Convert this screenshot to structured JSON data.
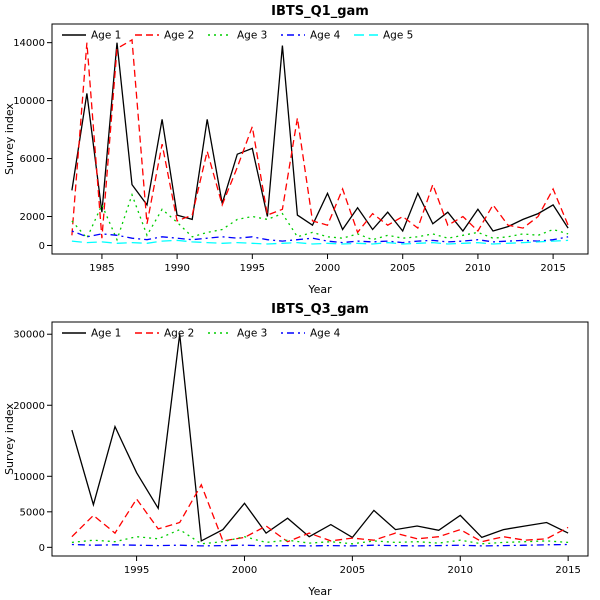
{
  "page": {
    "background": "#ffffff"
  },
  "chart_data": [
    {
      "type": "line",
      "title": "IBTS_Q1_gam",
      "xlabel": "Year",
      "ylabel": "Survey index",
      "grid": false,
      "legend_position": "top-left-horizontal",
      "x": [
        1983,
        1984,
        1985,
        1986,
        1987,
        1988,
        1989,
        1990,
        1991,
        1992,
        1993,
        1994,
        1995,
        1996,
        1997,
        1998,
        1999,
        2000,
        2001,
        2002,
        2003,
        2004,
        2005,
        2006,
        2007,
        2008,
        2009,
        2010,
        2011,
        2012,
        2013,
        2014,
        2015,
        2016
      ],
      "xticks": [
        1985,
        1990,
        1995,
        2000,
        2005,
        2010,
        2015
      ],
      "yticks": [
        0,
        2000,
        6000,
        10000,
        14000
      ],
      "ylim": [
        0,
        14700
      ],
      "series": [
        {
          "name": "Age 1",
          "color": "#000000",
          "dash": "",
          "values": [
            3800,
            10500,
            2300,
            14000,
            4200,
            2800,
            8700,
            2100,
            1800,
            8700,
            2900,
            6300,
            6700,
            2000,
            13800,
            2100,
            1400,
            3600,
            1100,
            2600,
            1100,
            2300,
            1000,
            3600,
            1500,
            2300,
            1000,
            2500,
            1000,
            1300,
            1800,
            2200,
            2800,
            1200
          ]
        },
        {
          "name": "Age 2",
          "color": "#FF0000",
          "dash": "7,4",
          "values": [
            700,
            14000,
            500,
            13600,
            14200,
            1500,
            7000,
            1700,
            2100,
            6500,
            2800,
            5400,
            8200,
            2100,
            2500,
            8800,
            1700,
            1400,
            3900,
            900,
            2200,
            1400,
            2000,
            1200,
            4200,
            1400,
            2000,
            1000,
            2800,
            1400,
            1200,
            2000,
            3900,
            1400
          ]
        },
        {
          "name": "Age 3",
          "color": "#00CD00",
          "dash": "2,4",
          "values": [
            1700,
            500,
            2800,
            400,
            3500,
            700,
            2500,
            1600,
            600,
            900,
            1100,
            1800,
            2000,
            1800,
            2200,
            600,
            900,
            600,
            500,
            800,
            400,
            700,
            500,
            600,
            800,
            500,
            700,
            900,
            500,
            600,
            800,
            700,
            1100,
            800
          ]
        },
        {
          "name": "Age 4",
          "color": "#0000FF",
          "dash": "2,4,7,4",
          "values": [
            1000,
            600,
            800,
            700,
            500,
            400,
            600,
            500,
            400,
            500,
            600,
            500,
            600,
            400,
            300,
            400,
            500,
            300,
            200,
            300,
            250,
            300,
            200,
            300,
            350,
            250,
            300,
            400,
            250,
            300,
            350,
            300,
            400,
            600
          ]
        },
        {
          "name": "Age 5",
          "color": "#00FFFF",
          "dash": "10,5",
          "values": [
            300,
            200,
            250,
            150,
            200,
            150,
            300,
            350,
            250,
            200,
            150,
            200,
            150,
            100,
            150,
            200,
            100,
            150,
            100,
            150,
            100,
            200,
            100,
            150,
            200,
            100,
            150,
            200,
            100,
            150,
            200,
            250,
            300,
            350
          ]
        }
      ]
    },
    {
      "type": "line",
      "title": "IBTS_Q3_gam",
      "xlabel": "Year",
      "ylabel": "Survey index",
      "grid": false,
      "legend_position": "top-left-horizontal",
      "x": [
        1992,
        1993,
        1994,
        1995,
        1996,
        1997,
        1998,
        1999,
        2000,
        2001,
        2002,
        2003,
        2004,
        2005,
        2006,
        2007,
        2008,
        2009,
        2010,
        2011,
        2012,
        2013,
        2014,
        2015
      ],
      "xticks": [
        1995,
        2000,
        2005,
        2010,
        2015
      ],
      "yticks": [
        0,
        5000,
        10000,
        20000,
        30000
      ],
      "ylim": [
        0,
        30500
      ],
      "series": [
        {
          "name": "Age 1",
          "color": "#000000",
          "dash": "",
          "values": [
            16500,
            6000,
            17000,
            10500,
            5500,
            30000,
            900,
            2500,
            6200,
            2000,
            4100,
            1500,
            3200,
            1400,
            5200,
            2500,
            3000,
            2400,
            4500,
            1400,
            2500,
            3000,
            3500,
            2000
          ]
        },
        {
          "name": "Age 2",
          "color": "#FF0000",
          "dash": "7,4",
          "values": [
            1500,
            4500,
            2000,
            6800,
            2600,
            3500,
            8800,
            900,
            1400,
            3000,
            800,
            2000,
            900,
            1300,
            1000,
            2000,
            1200,
            1500,
            2500,
            800,
            1500,
            1000,
            1200,
            2800
          ]
        },
        {
          "name": "Age 3",
          "color": "#00CD00",
          "dash": "2,4",
          "values": [
            700,
            1000,
            800,
            1500,
            1200,
            2500,
            500,
            800,
            1500,
            700,
            1000,
            600,
            800,
            500,
            900,
            700,
            800,
            600,
            1000,
            500,
            700,
            800,
            900,
            700
          ]
        },
        {
          "name": "Age 4",
          "color": "#0000FF",
          "dash": "2,4,7,4",
          "values": [
            400,
            300,
            350,
            300,
            250,
            300,
            200,
            250,
            300,
            200,
            250,
            200,
            250,
            200,
            300,
            250,
            200,
            250,
            300,
            200,
            250,
            300,
            350,
            400
          ]
        }
      ]
    }
  ]
}
